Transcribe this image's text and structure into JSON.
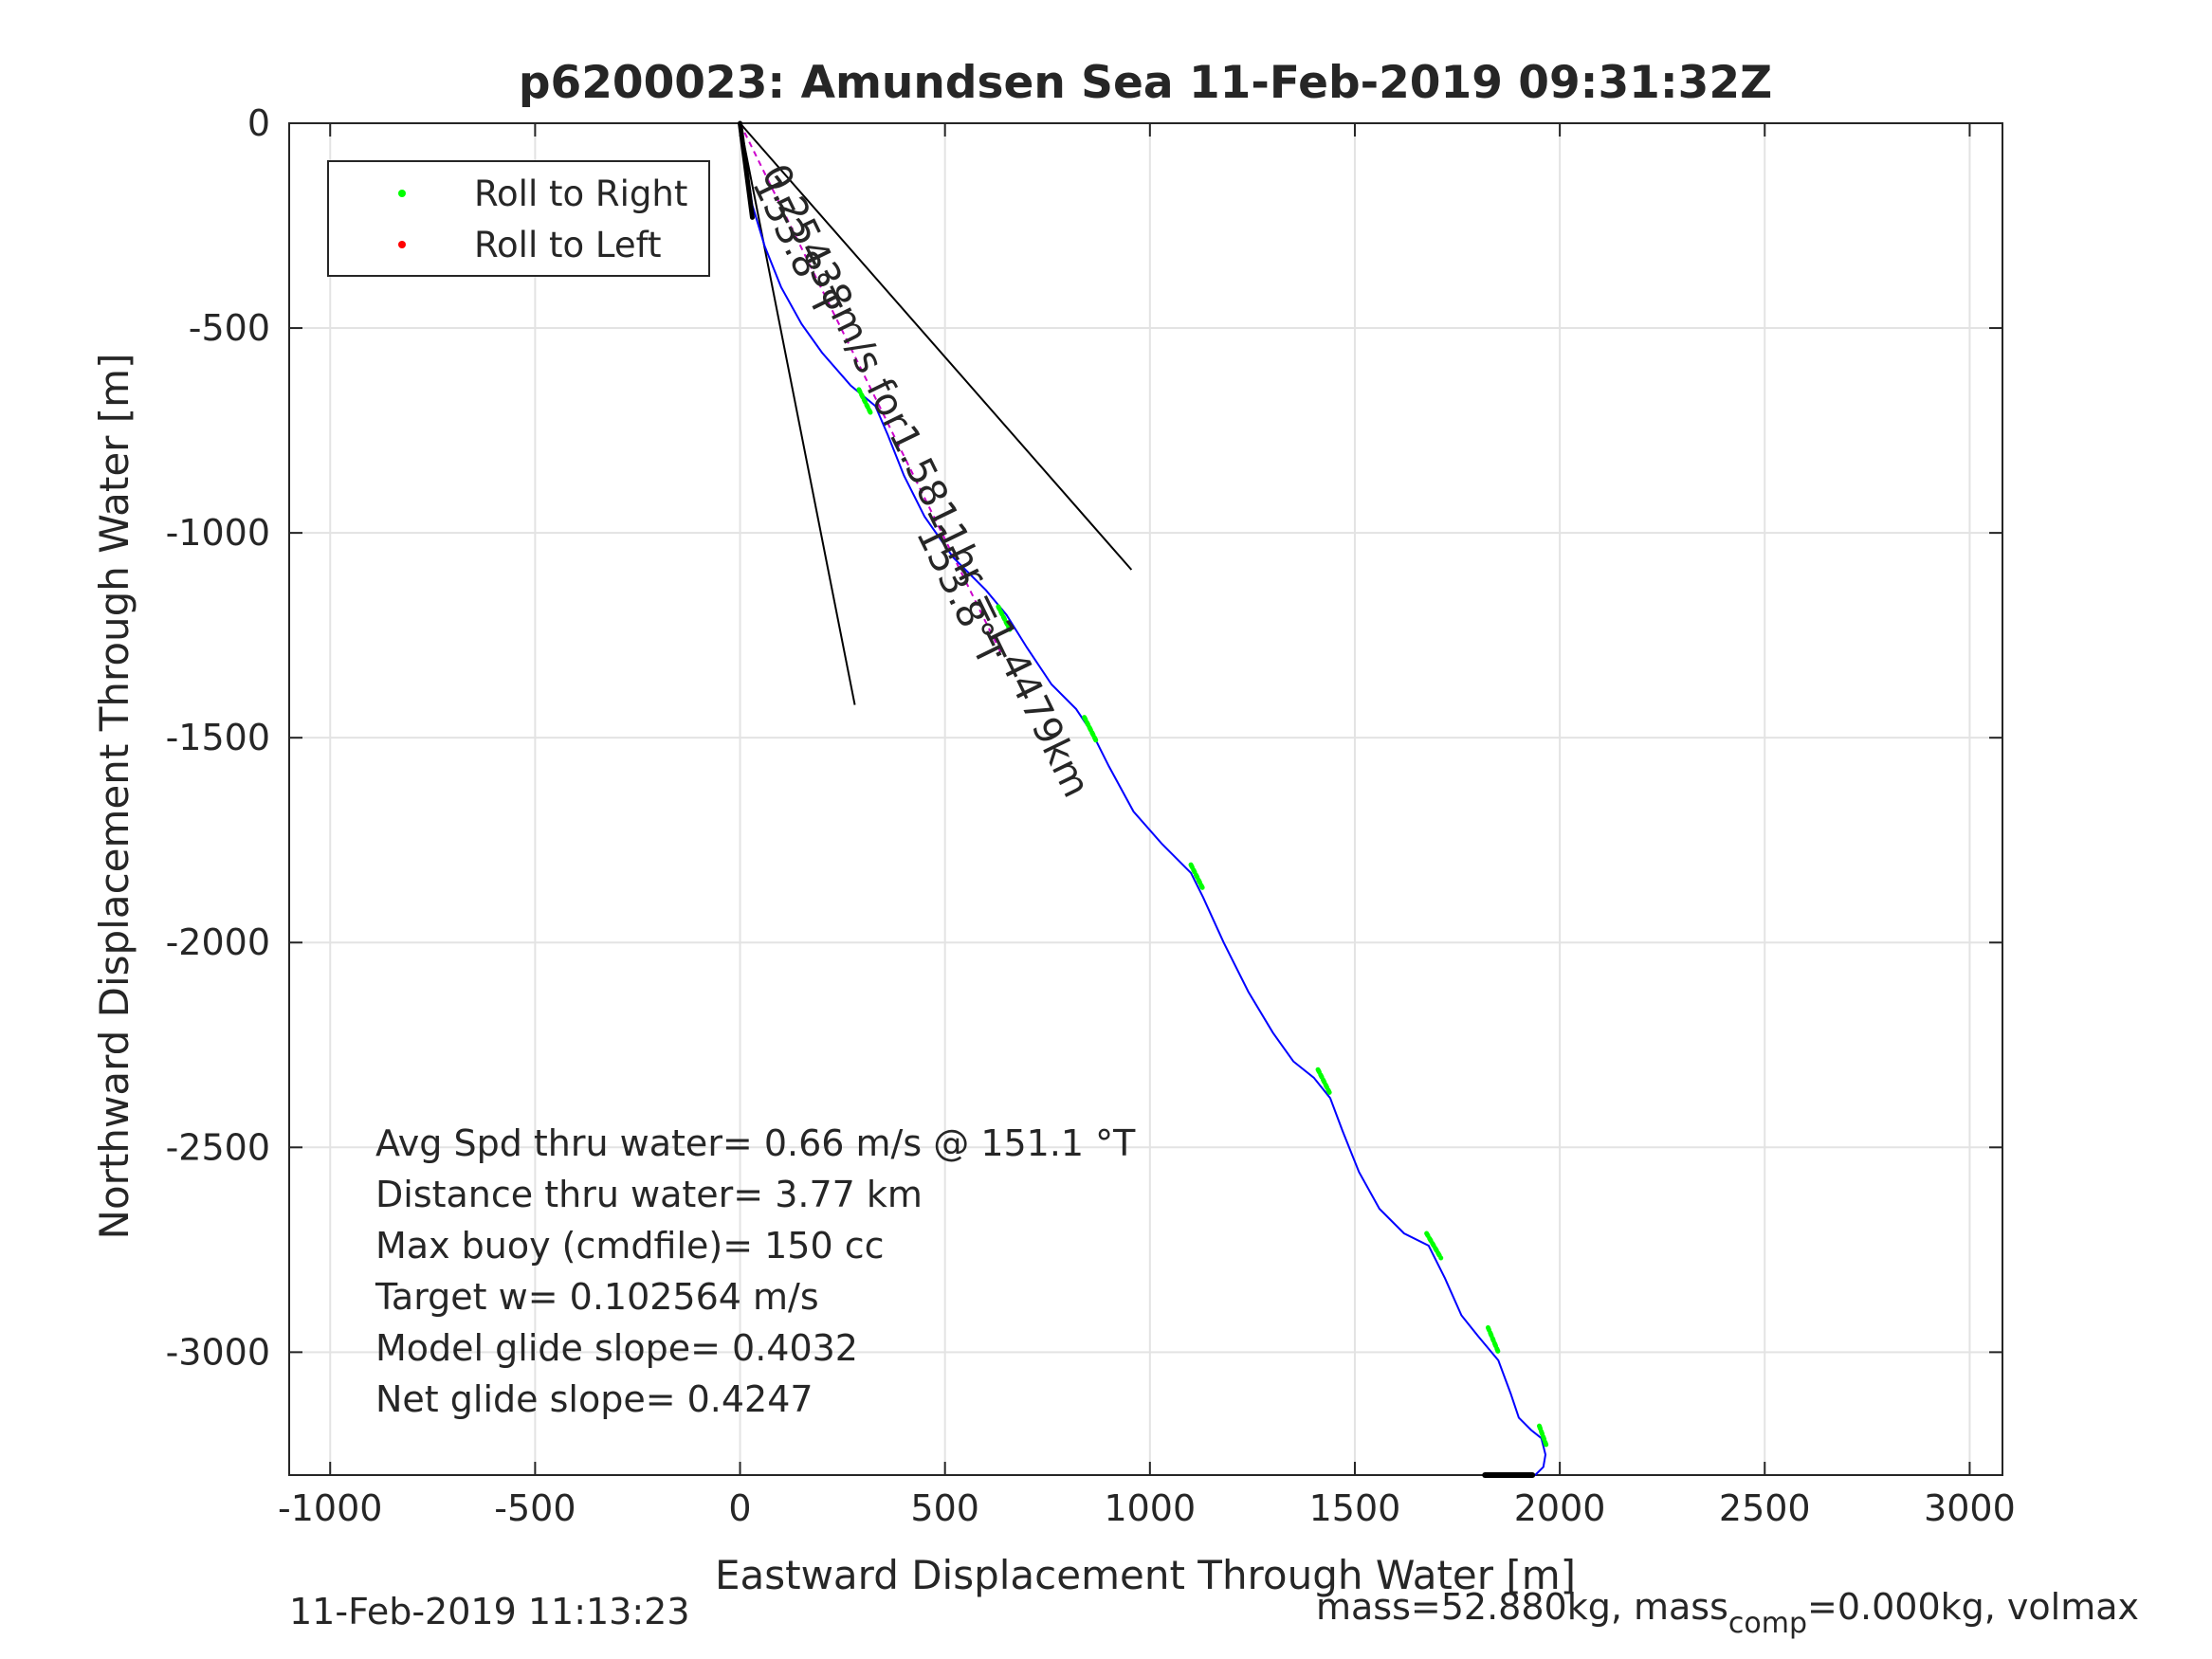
{
  "chart_data": {
    "type": "line",
    "title": "p6200023: Amundsen Sea 11-Feb-2019 09:31:32Z",
    "xlabel": "Eastward Displacement Through Water [m]",
    "ylabel": "Northward Displacement Through Water [m]",
    "xlim": [
      -1100,
      3080
    ],
    "ylim": [
      -3300,
      0
    ],
    "xticks": [
      -1000,
      -500,
      0,
      500,
      1000,
      1500,
      2000,
      2500,
      3000
    ],
    "xtick_labels": [
      "-1000",
      "-500",
      "0",
      "500",
      "1000",
      "1500",
      "2000",
      "2500",
      "3000"
    ],
    "yticks": [
      0,
      -500,
      -1000,
      -1500,
      -2000,
      -2500,
      -3000
    ],
    "ytick_labels": [
      "0",
      "-500",
      "-1000",
      "-1500",
      "-2000",
      "-2500",
      "-3000"
    ],
    "grid": true,
    "legend_placement": "top-left",
    "legend": [
      {
        "label": "Roll to Right",
        "color": "#00ff00"
      },
      {
        "label": "Roll to Left",
        "color": "#ff0000"
      }
    ],
    "series": [
      {
        "name": "track",
        "color": "#0000ff",
        "x": [
          0,
          15,
          30,
          60,
          100,
          150,
          200,
          270,
          330,
          360,
          400,
          450,
          520,
          600,
          650,
          700,
          760,
          820,
          860,
          900,
          960,
          1030,
          1100,
          1130,
          1180,
          1240,
          1300,
          1350,
          1400,
          1440,
          1470,
          1510,
          1560,
          1620,
          1680,
          1720,
          1760,
          1800,
          1850,
          1880,
          1900,
          1930,
          1955,
          1965,
          1960,
          1940,
          1910
        ],
        "y": [
          0,
          -100,
          -200,
          -300,
          -400,
          -490,
          -560,
          -640,
          -690,
          -760,
          -860,
          -960,
          -1060,
          -1140,
          -1200,
          -1280,
          -1370,
          -1430,
          -1490,
          -1570,
          -1680,
          -1760,
          -1830,
          -1890,
          -2000,
          -2120,
          -2220,
          -2290,
          -2330,
          -2380,
          -2460,
          -2560,
          -2650,
          -2710,
          -2740,
          -2820,
          -2910,
          -2960,
          -3020,
          -3100,
          -3160,
          -3190,
          -3210,
          -3250,
          -3280,
          -3300,
          -3300
        ]
      }
    ],
    "roll_right_segments": [
      {
        "x": [
          290,
          320
        ],
        "y": [
          -650,
          -710
        ]
      },
      {
        "x": [
          630,
          660
        ],
        "y": [
          -1180,
          -1240
        ]
      },
      {
        "x": [
          840,
          870
        ],
        "y": [
          -1450,
          -1510
        ]
      },
      {
        "x": [
          1100,
          1130
        ],
        "y": [
          -1810,
          -1870
        ]
      },
      {
        "x": [
          1410,
          1440
        ],
        "y": [
          -2310,
          -2370
        ]
      },
      {
        "x": [
          1675,
          1710
        ],
        "y": [
          -2710,
          -2770
        ]
      },
      {
        "x": [
          1825,
          1850
        ],
        "y": [
          -2940,
          -3000
        ]
      },
      {
        "x": [
          1950,
          1968
        ],
        "y": [
          -3180,
          -3230
        ]
      }
    ],
    "current_line": {
      "x": [
        0,
        640
      ],
      "y": [
        0,
        -1300
      ],
      "color": "#cc00cc"
    },
    "bound_lines": [
      {
        "x": [
          0,
          280
        ],
        "y": [
          0,
          -1420
        ]
      },
      {
        "x": [
          0,
          955
        ],
        "y": [
          0,
          -1090
        ]
      }
    ],
    "current_label": "0.25438m/s for1.5811hr =1.4479km",
    "heading_label": "153.8°T",
    "heading_label_short": "153.8°T",
    "annotations": [
      "Avg Spd thru water=  0.66 m/s @ 151.1 °T",
      "Distance thru water=  3.77 km",
      "Max buoy (cmdfile)= 150 cc",
      "Target w= 0.102564 m/s",
      "Model glide slope= 0.4032",
      "Net glide slope= 0.4247"
    ]
  },
  "footer": {
    "timestamp": "11-Feb-2019 11:13:23",
    "mass_prefix": "mass=52.880kg, mass",
    "mass_sub": "comp",
    "mass_suffix": "=0.000kg, volmax"
  }
}
